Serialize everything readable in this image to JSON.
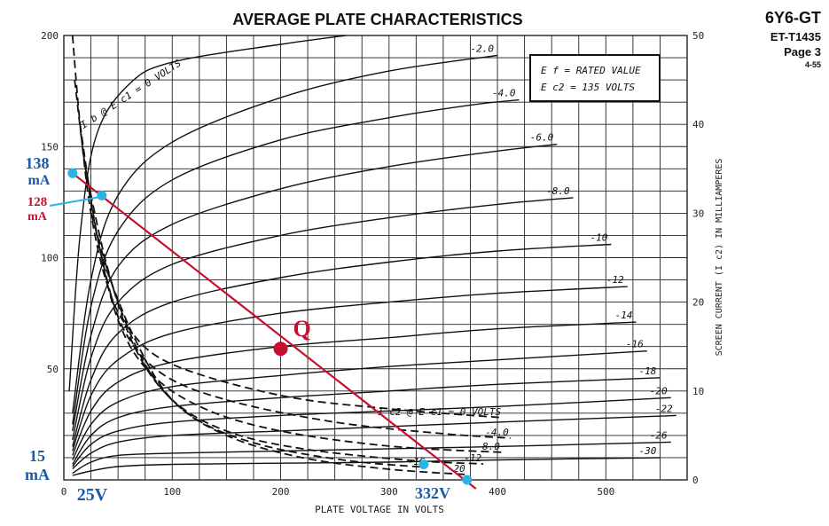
{
  "header": {
    "title": "AVERAGE PLATE CHARACTERISTICS",
    "tube": "6Y6-GT",
    "code": "ET-T1435",
    "page": "Page 3",
    "date": "4-55"
  },
  "infobox": {
    "line1": "E f = RATED VALUE",
    "line2": "E c2 = 135 VOLTS"
  },
  "chart_data": {
    "type": "line",
    "title": "AVERAGE PLATE CHARACTERISTICS",
    "xlabel": "PLATE VOLTAGE IN VOLTS",
    "ylabel": "",
    "y2label": "SCREEN CURRENT (I c2) IN MILLIAMPERES",
    "xlim": [
      0,
      575
    ],
    "ylim": [
      0,
      200
    ],
    "y2lim": [
      0,
      50
    ],
    "grid": true,
    "x_ticks": [
      "0",
      "100",
      "200",
      "300",
      "400",
      "500"
    ],
    "y_ticks": [
      "50",
      "100",
      "150",
      "200"
    ],
    "y2_ticks": [
      "0",
      "10",
      "20",
      "30",
      "40",
      "50"
    ],
    "plate_current_series": [
      {
        "name": "I b @ E c1 = 0 VOLTS",
        "grid_voltage": 0,
        "points": [
          [
            5,
            40
          ],
          [
            15,
            110
          ],
          [
            30,
            155
          ],
          [
            60,
            178
          ],
          [
            100,
            188
          ],
          [
            200,
            196
          ],
          [
            260,
            200
          ]
        ]
      },
      {
        "name": "-2.0",
        "grid_voltage": -2,
        "points": [
          [
            8,
            30
          ],
          [
            25,
            90
          ],
          [
            50,
            128
          ],
          [
            100,
            152
          ],
          [
            200,
            172
          ],
          [
            300,
            184
          ],
          [
            400,
            191
          ]
        ]
      },
      {
        "name": "-4.0",
        "grid_voltage": -4,
        "points": [
          [
            8,
            25
          ],
          [
            25,
            78
          ],
          [
            50,
            112
          ],
          [
            100,
            135
          ],
          [
            200,
            153
          ],
          [
            300,
            163
          ],
          [
            380,
            169
          ],
          [
            420,
            171
          ]
        ]
      },
      {
        "name": "-6.0",
        "grid_voltage": -6,
        "points": [
          [
            8,
            22
          ],
          [
            25,
            65
          ],
          [
            50,
            96
          ],
          [
            100,
            115
          ],
          [
            200,
            131
          ],
          [
            300,
            141
          ],
          [
            400,
            148
          ],
          [
            455,
            151
          ]
        ]
      },
      {
        "name": "-8.0",
        "grid_voltage": -8,
        "points": [
          [
            8,
            18
          ],
          [
            25,
            55
          ],
          [
            50,
            80
          ],
          [
            100,
            97
          ],
          [
            200,
            110
          ],
          [
            300,
            118
          ],
          [
            400,
            124
          ],
          [
            470,
            127
          ]
        ]
      },
      {
        "name": "-10",
        "grid_voltage": -10,
        "points": [
          [
            8,
            15
          ],
          [
            25,
            45
          ],
          [
            50,
            66
          ],
          [
            100,
            80
          ],
          [
            200,
            91
          ],
          [
            300,
            98
          ],
          [
            400,
            103
          ],
          [
            505,
            106
          ]
        ]
      },
      {
        "name": "-12",
        "grid_voltage": -12,
        "points": [
          [
            8,
            13
          ],
          [
            25,
            38
          ],
          [
            50,
            54
          ],
          [
            100,
            66
          ],
          [
            200,
            75
          ],
          [
            300,
            80
          ],
          [
            400,
            84
          ],
          [
            520,
            87
          ]
        ]
      },
      {
        "name": "-14",
        "grid_voltage": -14,
        "points": [
          [
            8,
            11
          ],
          [
            25,
            31
          ],
          [
            50,
            44
          ],
          [
            100,
            53
          ],
          [
            200,
            60
          ],
          [
            300,
            64
          ],
          [
            400,
            68
          ],
          [
            528,
            71
          ]
        ]
      },
      {
        "name": "-16",
        "grid_voltage": -16,
        "points": [
          [
            8,
            9
          ],
          [
            25,
            25
          ],
          [
            50,
            35
          ],
          [
            100,
            42
          ],
          [
            200,
            47
          ],
          [
            300,
            51
          ],
          [
            400,
            54
          ],
          [
            538,
            58
          ]
        ]
      },
      {
        "name": "-18",
        "grid_voltage": -18,
        "points": [
          [
            8,
            7
          ],
          [
            25,
            20
          ],
          [
            50,
            28
          ],
          [
            100,
            33
          ],
          [
            200,
            37
          ],
          [
            300,
            40
          ],
          [
            400,
            43
          ],
          [
            550,
            46
          ]
        ]
      },
      {
        "name": "-20",
        "grid_voltage": -20,
        "points": [
          [
            8,
            6
          ],
          [
            25,
            16
          ],
          [
            50,
            22
          ],
          [
            100,
            26
          ],
          [
            200,
            29
          ],
          [
            300,
            31
          ],
          [
            400,
            33
          ],
          [
            560,
            37
          ]
        ]
      },
      {
        "name": "-22",
        "grid_voltage": -22,
        "points": [
          [
            8,
            5
          ],
          [
            25,
            12
          ],
          [
            50,
            17
          ],
          [
            100,
            20
          ],
          [
            200,
            22
          ],
          [
            300,
            24
          ],
          [
            400,
            26
          ],
          [
            565,
            29
          ]
        ]
      },
      {
        "name": "-26",
        "grid_voltage": -26,
        "points": [
          [
            8,
            3
          ],
          [
            25,
            8
          ],
          [
            50,
            11
          ],
          [
            100,
            12
          ],
          [
            200,
            13
          ],
          [
            300,
            14
          ],
          [
            400,
            15
          ],
          [
            560,
            17
          ]
        ]
      },
      {
        "name": "-30",
        "grid_voltage": -30,
        "points": [
          [
            8,
            2
          ],
          [
            25,
            4
          ],
          [
            50,
            6
          ],
          [
            100,
            7
          ],
          [
            200,
            7.5
          ],
          [
            300,
            8
          ],
          [
            400,
            9
          ],
          [
            550,
            10
          ]
        ]
      }
    ],
    "screen_current_series": [
      {
        "name": "I c2 @ E c1 = 0 VOLTS",
        "points": [
          [
            8,
            50
          ],
          [
            15,
            40
          ],
          [
            25,
            30
          ],
          [
            40,
            22
          ],
          [
            60,
            17
          ],
          [
            100,
            13
          ],
          [
            200,
            9.5
          ],
          [
            300,
            8
          ],
          [
            405,
            7
          ]
        ]
      },
      {
        "name": "-4.0",
        "points": [
          [
            10,
            45
          ],
          [
            20,
            35
          ],
          [
            35,
            25
          ],
          [
            55,
            17
          ],
          [
            90,
            12
          ],
          [
            150,
            9
          ],
          [
            250,
            6.5
          ],
          [
            350,
            5.2
          ],
          [
            412,
            4.7
          ]
        ]
      },
      {
        "name": "-8.0",
        "points": [
          [
            15,
            40
          ],
          [
            30,
            28
          ],
          [
            50,
            18
          ],
          [
            80,
            12
          ],
          [
            130,
            8
          ],
          [
            200,
            5.5
          ],
          [
            300,
            3.8
          ],
          [
            404,
            3.1
          ]
        ]
      },
      {
        "name": "-12",
        "points": [
          [
            20,
            35
          ],
          [
            40,
            24
          ],
          [
            65,
            15
          ],
          [
            100,
            9
          ],
          [
            150,
            5.5
          ],
          [
            220,
            3.5
          ],
          [
            320,
            2.2
          ],
          [
            387,
            1.8
          ]
        ]
      },
      {
        "name": "-16",
        "points": [
          [
            25,
            30
          ],
          [
            50,
            20
          ],
          [
            80,
            12
          ],
          [
            120,
            7
          ],
          [
            180,
            4
          ],
          [
            260,
            2.2
          ],
          [
            335,
            1.4
          ]
        ]
      },
      {
        "name": "-20",
        "points": [
          [
            35,
            25
          ],
          [
            65,
            16
          ],
          [
            100,
            9
          ],
          [
            150,
            5
          ],
          [
            220,
            2.5
          ],
          [
            300,
            1.2
          ],
          [
            372,
            0.6
          ]
        ]
      }
    ],
    "load_line": {
      "x": [
        8,
        372
      ],
      "y": [
        138,
        0
      ]
    },
    "operating_point": {
      "label": "Q",
      "x": 200,
      "y": 59
    },
    "annotations": [
      {
        "text": "138",
        "sub": "mA",
        "x": 8,
        "y": 138
      },
      {
        "text": "128",
        "sub": "mA",
        "x": 35,
        "y": 128
      },
      {
        "text": "15",
        "sub": "mA",
        "x": 0,
        "y": 15
      },
      {
        "text": "25V",
        "x": 25,
        "y": 0
      },
      {
        "text": "332V",
        "x": 332,
        "y": 7
      },
      {
        "text": "Q",
        "x": 200,
        "y": 59
      }
    ]
  },
  "colors": {
    "grid": "#222222",
    "curves": "#111111",
    "load_line": "#c8102e",
    "marker": "#2ab4e6",
    "annotation_blue": "#1a5aa8",
    "annotation_red": "#c8102e"
  }
}
